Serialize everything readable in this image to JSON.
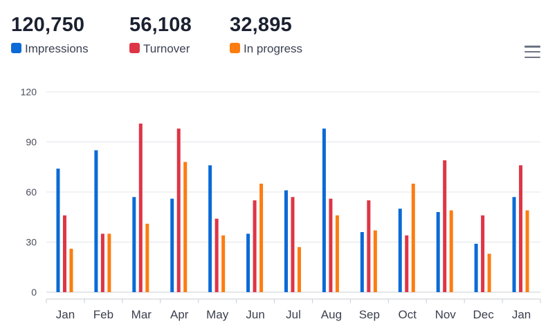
{
  "summary": [
    {
      "value": "120,750",
      "label": "Impressions",
      "color": "#0b6ad6"
    },
    {
      "value": "56,108",
      "label": "Turnover",
      "color": "#de3546"
    },
    {
      "value": "32,895",
      "label": "In progress",
      "color": "#fb7d11"
    }
  ],
  "menu_icon": "hamburger-menu-icon",
  "chart_data": {
    "type": "bar",
    "categories": [
      "Jan",
      "Feb",
      "Mar",
      "Apr",
      "May",
      "Jun",
      "Jul",
      "Aug",
      "Sep",
      "Oct",
      "Nov",
      "Dec",
      "Jan"
    ],
    "series": [
      {
        "name": "Impressions",
        "color": "#0b6ad6",
        "values": [
          74,
          85,
          57,
          56,
          76,
          35,
          61,
          98,
          36,
          50,
          48,
          29,
          57
        ]
      },
      {
        "name": "Turnover",
        "color": "#de3546",
        "values": [
          46,
          35,
          101,
          98,
          44,
          55,
          57,
          56,
          55,
          34,
          79,
          46,
          76
        ]
      },
      {
        "name": "In progress",
        "color": "#fb7d11",
        "values": [
          26,
          35,
          41,
          78,
          34,
          65,
          27,
          46,
          37,
          65,
          49,
          23,
          49
        ]
      }
    ],
    "yticks": [
      0,
      30,
      60,
      90,
      120
    ],
    "ylim": [
      0,
      120
    ],
    "grid": true,
    "legend_position": "top-left"
  }
}
